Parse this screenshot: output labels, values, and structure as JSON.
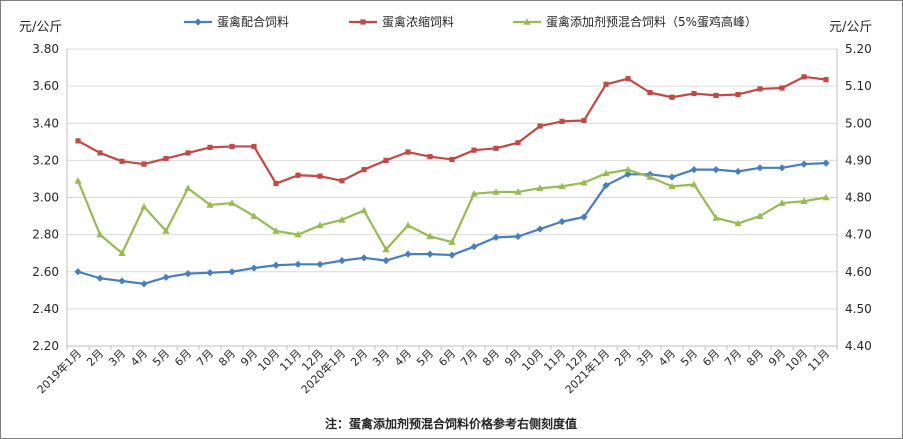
{
  "chart_data": {
    "type": "line",
    "left_unit": "元/公斤",
    "right_unit": "元/公斤",
    "left_axis": {
      "min": 2.2,
      "max": 3.8,
      "step": 0.2,
      "ticks": [
        "2.20",
        "2.40",
        "2.60",
        "2.80",
        "3.00",
        "3.20",
        "3.40",
        "3.60",
        "3.80"
      ]
    },
    "right_axis": {
      "min": 4.4,
      "max": 5.2,
      "step": 0.1,
      "ticks": [
        "4.40",
        "4.50",
        "4.60",
        "4.70",
        "4.80",
        "4.90",
        "5.00",
        "5.10",
        "5.20"
      ]
    },
    "categories": [
      "2019年1月",
      "2月",
      "3月",
      "4月",
      "5月",
      "6月",
      "7月",
      "8月",
      "9月",
      "10月",
      "11月",
      "12月",
      "2020年1月",
      "2月",
      "3月",
      "4月",
      "5月",
      "6月",
      "7月",
      "8月",
      "9月",
      "10月",
      "11月",
      "12月",
      "2021年1月",
      "2月",
      "3月",
      "4月",
      "5月",
      "6月",
      "7月",
      "8月",
      "9月",
      "10月",
      "11月"
    ],
    "series": [
      {
        "name": "蛋禽配合饲料",
        "axis": "left",
        "color": "#4a7ebb",
        "marker": "diamond",
        "values": [
          2.6,
          2.565,
          2.55,
          2.535,
          2.57,
          2.59,
          2.595,
          2.6,
          2.62,
          2.635,
          2.64,
          2.64,
          2.66,
          2.675,
          2.66,
          2.695,
          2.695,
          2.69,
          2.735,
          2.785,
          2.79,
          2.83,
          2.87,
          2.895,
          3.065,
          3.125,
          3.125,
          3.11,
          3.15,
          3.15,
          3.14,
          3.16,
          3.16,
          3.18,
          3.185
        ]
      },
      {
        "name": "蛋禽浓缩饲料",
        "axis": "left",
        "color": "#be4b48",
        "marker": "square",
        "values": [
          3.305,
          3.24,
          3.195,
          3.18,
          3.21,
          3.24,
          3.27,
          3.275,
          3.275,
          3.075,
          3.12,
          3.115,
          3.09,
          3.15,
          3.2,
          3.245,
          3.22,
          3.205,
          3.255,
          3.265,
          3.295,
          3.385,
          3.41,
          3.415,
          3.61,
          3.64,
          3.565,
          3.54,
          3.56,
          3.55,
          3.555,
          3.585,
          3.59,
          3.65,
          3.635
        ]
      },
      {
        "name": "蛋禽添加剂预混合饲料（5%蛋鸡高峰）",
        "axis": "right",
        "color": "#98b954",
        "marker": "triangle",
        "values": [
          4.845,
          4.7,
          4.65,
          4.775,
          4.71,
          4.825,
          4.78,
          4.785,
          4.75,
          4.71,
          4.7,
          4.725,
          4.74,
          4.765,
          4.66,
          4.725,
          4.695,
          4.68,
          4.81,
          4.815,
          4.815,
          4.825,
          4.83,
          4.84,
          4.865,
          4.875,
          4.855,
          4.83,
          4.835,
          4.745,
          4.73,
          4.75,
          4.785,
          4.79,
          4.8
        ]
      }
    ],
    "note": "注：蛋禽添加剂预混合饲料价格参考右侧刻度值"
  }
}
